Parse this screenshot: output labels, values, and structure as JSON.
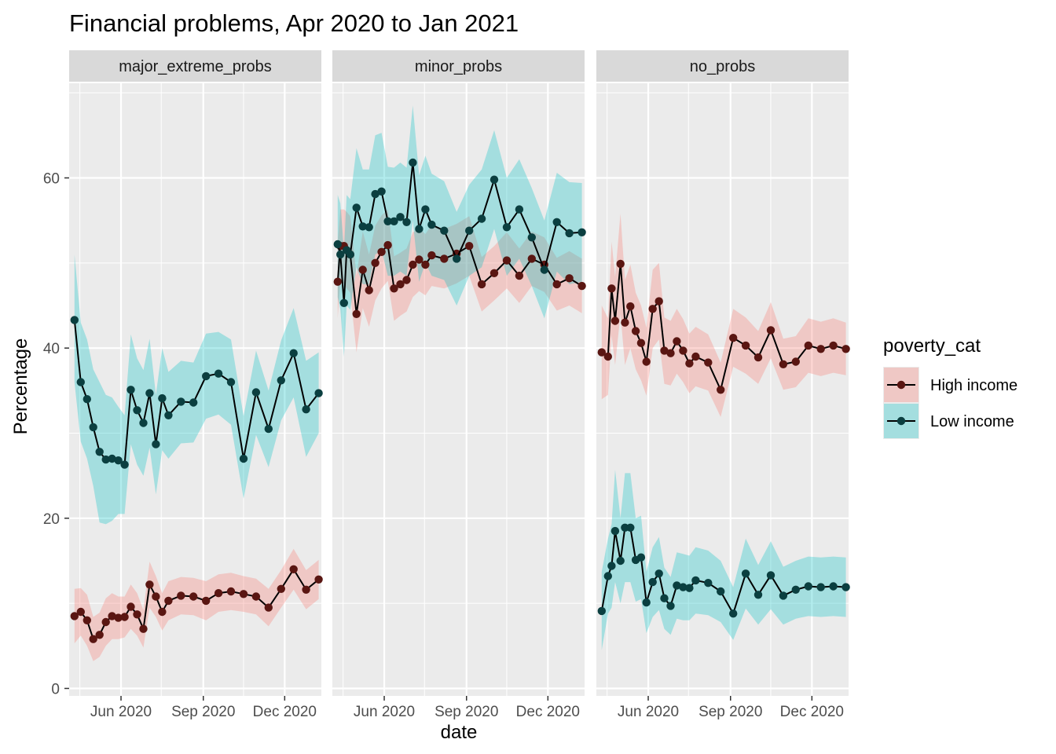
{
  "title": "Financial problems, Apr 2020 to Jan 2021",
  "xlabel": "date",
  "ylabel": "Percentage",
  "legend": {
    "title": "poverty_cat",
    "entries": [
      {
        "label": "High income",
        "fill": "#F8766D",
        "point": "#5a1612"
      },
      {
        "label": "Low income",
        "fill": "#00BFC4",
        "point": "#0b3f40"
      }
    ]
  },
  "colors": {
    "panel_bg": "#EBEBEB",
    "strip_bg": "#D9D9D9",
    "grid": "#FFFFFF",
    "line": "#000000"
  },
  "chart_data": {
    "type": "line",
    "facets": [
      "major_extreme_probs",
      "minor_probs",
      "no_probs"
    ],
    "ylim": [
      0,
      70
    ],
    "y_ticks": [
      0,
      20,
      40,
      60
    ],
    "x_ticks": [
      {
        "date": "2020-06-01",
        "label": "Jun 2020"
      },
      {
        "date": "2020-09-01",
        "label": "Sep 2020"
      },
      {
        "date": "2020-12-01",
        "label": "Dec 2020"
      }
    ],
    "xlim": [
      "2020-04-04",
      "2021-01-11"
    ],
    "grid": true,
    "legend_position": "right",
    "panels": [
      {
        "name": "major_extreme_probs",
        "series": [
          {
            "name": "High income",
            "x": [
              "2020-04-10",
              "2020-04-17",
              "2020-04-24",
              "2020-05-01",
              "2020-05-08",
              "2020-05-15",
              "2020-05-22",
              "2020-05-29",
              "2020-06-05",
              "2020-06-12",
              "2020-06-19",
              "2020-06-26",
              "2020-07-03",
              "2020-07-10",
              "2020-07-17",
              "2020-07-24",
              "2020-08-07",
              "2020-08-21",
              "2020-09-04",
              "2020-09-18",
              "2020-10-02",
              "2020-10-16",
              "2020-10-30",
              "2020-11-13",
              "2020-11-27",
              "2020-12-11",
              "2020-12-25",
              "2021-01-08"
            ],
            "y": [
              8.5,
              9.0,
              8.0,
              5.8,
              6.3,
              7.8,
              8.5,
              8.3,
              8.4,
              9.6,
              8.7,
              7.0,
              12.2,
              10.8,
              9.0,
              10.3,
              10.9,
              10.8,
              10.3,
              11.2,
              11.4,
              11.1,
              10.8,
              9.5,
              11.7,
              14.0,
              11.6,
              12.8
            ],
            "lower": [
              5.3,
              6.2,
              5.0,
              3.2,
              3.7,
              5.0,
              5.8,
              5.8,
              6.0,
              7.0,
              6.2,
              4.8,
              9.5,
              8.4,
              6.8,
              8.0,
              8.7,
              8.6,
              8.0,
              9.0,
              9.2,
              9.0,
              8.7,
              7.3,
              9.5,
              11.6,
              9.3,
              10.5
            ],
            "upper": [
              11.7,
              11.8,
              11.0,
              8.4,
              8.9,
              10.6,
              11.2,
              10.8,
              10.8,
              12.2,
              11.2,
              9.2,
              14.9,
              13.2,
              11.2,
              12.6,
              13.1,
              13.0,
              12.6,
              13.4,
              13.6,
              13.2,
              12.9,
              11.7,
              13.9,
              16.4,
              13.9,
              15.1
            ]
          },
          {
            "name": "Low income",
            "x": [
              "2020-04-10",
              "2020-04-17",
              "2020-04-24",
              "2020-05-01",
              "2020-05-08",
              "2020-05-15",
              "2020-05-22",
              "2020-05-29",
              "2020-06-05",
              "2020-06-12",
              "2020-06-19",
              "2020-06-26",
              "2020-07-03",
              "2020-07-10",
              "2020-07-17",
              "2020-07-24",
              "2020-08-07",
              "2020-08-21",
              "2020-09-04",
              "2020-09-18",
              "2020-10-02",
              "2020-10-16",
              "2020-10-30",
              "2020-11-13",
              "2020-11-27",
              "2020-12-11",
              "2020-12-25",
              "2021-01-08"
            ],
            "y": [
              43.3,
              36.0,
              34.0,
              30.7,
              27.8,
              26.9,
              27.0,
              26.8,
              26.3,
              35.1,
              32.7,
              31.2,
              34.7,
              28.7,
              34.1,
              32.1,
              33.7,
              33.6,
              36.7,
              37.0,
              36.0,
              27.0,
              34.8,
              30.5,
              36.2,
              39.4,
              32.8,
              34.7
            ],
            "lower": [
              36.0,
              29.0,
              27.0,
              23.8,
              19.5,
              19.3,
              19.7,
              20.5,
              20.5,
              28.7,
              26.3,
              25.0,
              28.3,
              22.8,
              28.0,
              27.0,
              28.8,
              28.9,
              31.7,
              32.2,
              31.0,
              22.3,
              29.8,
              26.0,
              31.5,
              34.2,
              27.2,
              30.0
            ],
            "upper": [
              51.0,
              43.0,
              41.0,
              37.5,
              36.0,
              34.5,
              34.2,
              33.1,
              32.1,
              41.6,
              38.8,
              37.4,
              41.1,
              34.5,
              40.0,
              37.2,
              38.5,
              38.3,
              41.7,
              41.9,
              41.0,
              32.0,
              39.7,
              35.0,
              40.9,
              44.7,
              38.5,
              39.5
            ]
          }
        ]
      },
      {
        "name": "minor_probs",
        "series": [
          {
            "name": "High income",
            "x": [
              "2020-04-10",
              "2020-04-13",
              "2020-04-17",
              "2020-04-20",
              "2020-04-24",
              "2020-05-01",
              "2020-05-08",
              "2020-05-15",
              "2020-05-22",
              "2020-05-29",
              "2020-06-05",
              "2020-06-12",
              "2020-06-19",
              "2020-06-26",
              "2020-07-03",
              "2020-07-10",
              "2020-07-17",
              "2020-07-24",
              "2020-08-07",
              "2020-08-21",
              "2020-09-04",
              "2020-09-18",
              "2020-10-02",
              "2020-10-16",
              "2020-10-30",
              "2020-11-13",
              "2020-11-27",
              "2020-12-11",
              "2020-12-25",
              "2021-01-08"
            ],
            "y": [
              47.8,
              52.0,
              52.0,
              51.5,
              51.0,
              44.0,
              49.2,
              46.8,
              50.0,
              51.3,
              52.1,
              47.0,
              47.5,
              48.0,
              49.8,
              50.4,
              49.8,
              50.9,
              50.5,
              51.1,
              52.0,
              47.5,
              48.8,
              50.3,
              48.5,
              50.5,
              49.8,
              47.5,
              48.2,
              47.3
            ],
            "lower": [
              43.5,
              48.0,
              47.5,
              47.0,
              46.5,
              39.5,
              44.7,
              42.5,
              45.6,
              47.0,
              47.9,
              43.2,
              43.8,
              44.3,
              46.0,
              46.7,
              46.2,
              47.3,
              47.0,
              47.6,
              48.5,
              44.3,
              45.6,
              47.0,
              45.3,
              47.3,
              46.6,
              44.4,
              45.0,
              44.1
            ],
            "upper": [
              52.5,
              56.3,
              56.3,
              56.0,
              55.5,
              48.5,
              53.7,
              51.0,
              54.4,
              55.6,
              56.3,
              50.8,
              51.2,
              51.7,
              53.6,
              54.1,
              53.4,
              54.5,
              54.0,
              54.6,
              55.5,
              50.7,
              52.0,
              53.6,
              51.7,
              53.7,
              53.0,
              50.6,
              51.4,
              50.5
            ]
          },
          {
            "name": "Low income",
            "x": [
              "2020-04-10",
              "2020-04-13",
              "2020-04-17",
              "2020-04-20",
              "2020-04-24",
              "2020-05-01",
              "2020-05-08",
              "2020-05-15",
              "2020-05-22",
              "2020-05-29",
              "2020-06-05",
              "2020-06-12",
              "2020-06-19",
              "2020-06-26",
              "2020-07-03",
              "2020-07-10",
              "2020-07-17",
              "2020-07-24",
              "2020-08-07",
              "2020-08-21",
              "2020-09-04",
              "2020-09-18",
              "2020-10-02",
              "2020-10-16",
              "2020-10-30",
              "2020-11-13",
              "2020-11-27",
              "2020-12-11",
              "2020-12-25",
              "2021-01-08"
            ],
            "y": [
              52.2,
              51.0,
              45.3,
              51.5,
              51.0,
              56.5,
              54.3,
              54.2,
              58.1,
              58.4,
              54.9,
              54.9,
              55.4,
              54.8,
              61.8,
              54.0,
              56.3,
              54.5,
              53.8,
              50.5,
              53.8,
              55.2,
              59.8,
              54.2,
              56.3,
              53.0,
              49.2,
              54.8,
              53.5,
              53.6
            ],
            "lower": [
              46.0,
              44.5,
              39.0,
              45.0,
              44.5,
              49.5,
              47.5,
              47.5,
              51.0,
              51.5,
              48.5,
              48.5,
              49.0,
              48.5,
              55.0,
              47.8,
              50.0,
              48.5,
              48.0,
              45.0,
              48.5,
              49.5,
              54.0,
              48.5,
              50.5,
              47.3,
              43.5,
              49.0,
              47.5,
              47.8
            ],
            "upper": [
              58.0,
              57.0,
              51.5,
              58.0,
              57.5,
              63.5,
              61.0,
              61.0,
              65.0,
              65.3,
              61.3,
              61.2,
              61.8,
              61.2,
              68.5,
              60.3,
              62.6,
              60.5,
              59.6,
              56.0,
              59.2,
              61.0,
              65.6,
              60.0,
              62.2,
              58.8,
              55.0,
              60.6,
              59.5,
              59.4
            ]
          }
        ]
      },
      {
        "name": "no_probs",
        "series": [
          {
            "name": "High income",
            "x": [
              "2020-04-10",
              "2020-04-17",
              "2020-04-21",
              "2020-04-25",
              "2020-05-01",
              "2020-05-06",
              "2020-05-12",
              "2020-05-18",
              "2020-05-24",
              "2020-05-30",
              "2020-06-06",
              "2020-06-13",
              "2020-06-19",
              "2020-06-26",
              "2020-07-03",
              "2020-07-10",
              "2020-07-17",
              "2020-07-24",
              "2020-08-07",
              "2020-08-21",
              "2020-09-04",
              "2020-09-18",
              "2020-10-02",
              "2020-10-16",
              "2020-10-30",
              "2020-11-13",
              "2020-11-27",
              "2020-12-11",
              "2020-12-25",
              "2021-01-08"
            ],
            "y": [
              39.5,
              39.0,
              47.0,
              43.2,
              49.9,
              43.0,
              44.9,
              42.0,
              40.6,
              38.4,
              44.6,
              45.5,
              39.7,
              39.4,
              40.8,
              39.7,
              38.2,
              39.0,
              38.3,
              35.1,
              41.2,
              40.3,
              38.9,
              42.1,
              38.1,
              38.4,
              40.3,
              39.9,
              40.3,
              39.9
            ],
            "lower": [
              34.0,
              34.5,
              41.5,
              38.0,
              44.0,
              38.0,
              40.0,
              37.5,
              36.2,
              34.4,
              40.0,
              41.0,
              35.8,
              35.6,
              37.0,
              36.0,
              34.7,
              35.5,
              35.0,
              31.9,
              37.8,
              37.0,
              35.8,
              38.8,
              35.1,
              35.4,
              37.1,
              36.7,
              37.1,
              36.8
            ],
            "upper": [
              45.0,
              43.5,
              52.5,
              48.4,
              55.8,
              48.0,
              49.8,
              46.5,
              45.0,
              42.4,
              49.2,
              50.0,
              43.6,
              43.2,
              44.6,
              43.4,
              41.7,
              42.5,
              41.6,
              38.3,
              44.6,
              43.6,
              42.0,
              45.4,
              41.1,
              41.4,
              43.5,
              43.1,
              43.5,
              43.0
            ]
          },
          {
            "name": "Low income",
            "x": [
              "2020-04-10",
              "2020-04-17",
              "2020-04-21",
              "2020-04-25",
              "2020-05-01",
              "2020-05-06",
              "2020-05-12",
              "2020-05-18",
              "2020-05-24",
              "2020-05-30",
              "2020-06-06",
              "2020-06-13",
              "2020-06-19",
              "2020-06-26",
              "2020-07-03",
              "2020-07-10",
              "2020-07-17",
              "2020-07-24",
              "2020-08-07",
              "2020-08-21",
              "2020-09-04",
              "2020-09-18",
              "2020-10-02",
              "2020-10-16",
              "2020-10-30",
              "2020-11-13",
              "2020-11-27",
              "2020-12-11",
              "2020-12-25",
              "2021-01-08"
            ],
            "y": [
              9.1,
              13.2,
              14.4,
              18.5,
              15.0,
              18.9,
              18.9,
              15.1,
              15.4,
              10.1,
              12.5,
              13.5,
              10.6,
              9.7,
              12.1,
              11.9,
              11.8,
              12.7,
              12.4,
              11.4,
              8.8,
              13.5,
              11.0,
              13.3,
              10.9,
              11.6,
              12.0,
              11.9,
              12.0,
              11.9
            ],
            "lower": [
              4.5,
              8.8,
              9.5,
              12.5,
              10.0,
              12.5,
              12.5,
              10.2,
              10.5,
              6.5,
              8.4,
              9.2,
              7.0,
              6.3,
              8.2,
              8.0,
              8.0,
              8.8,
              8.6,
              7.8,
              5.7,
              9.4,
              7.5,
              9.3,
              7.5,
              8.2,
              8.5,
              8.4,
              8.5,
              8.4
            ],
            "upper": [
              13.7,
              17.6,
              19.3,
              25.7,
              20.0,
              25.3,
              25.3,
              20.0,
              20.3,
              13.7,
              16.6,
              17.8,
              14.2,
              13.1,
              16.0,
              15.8,
              15.6,
              16.6,
              16.2,
              15.0,
              11.9,
              17.6,
              14.5,
              17.3,
              14.3,
              15.0,
              15.5,
              15.4,
              15.5,
              15.4
            ]
          }
        ]
      }
    ]
  }
}
